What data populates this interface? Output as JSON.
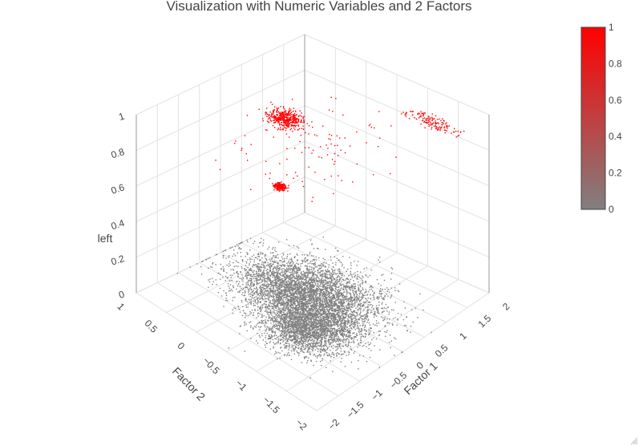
{
  "chart_data": {
    "type": "scatter",
    "title": "Visualization with Numeric Variables and 2 Factors",
    "axes": {
      "x": {
        "title": "Factor 1",
        "range": [
          -2,
          2
        ],
        "tick_labels": [
          "−2",
          "−1.5",
          "−1",
          "−0.5",
          "0",
          "0.5",
          "1",
          "1.5",
          "2"
        ]
      },
      "y": {
        "title": "Factor 2",
        "range": [
          -2,
          1
        ],
        "tick_labels": [
          "−2",
          "−1.5",
          "−1",
          "−0.5",
          "0",
          "0.5",
          "1"
        ]
      },
      "z": {
        "title": "left",
        "range": [
          0,
          1
        ],
        "tick_labels": [
          "0",
          "0.2",
          "0.4",
          "0.6",
          "0.8",
          "1"
        ]
      }
    },
    "colorbar": {
      "min": 0,
      "max": 1,
      "tick_values": [
        0,
        0.2,
        0.4,
        0.6,
        0.8,
        1
      ],
      "tick_labels": [
        "0",
        "0.2",
        "0.4",
        "0.6",
        "0.8",
        "1"
      ],
      "color_low": "#808080",
      "color_high": "#ff0000",
      "position": "right"
    },
    "series": [
      {
        "left": 0,
        "color": "#808080",
        "approx_points": 7000,
        "clusters": [
          {
            "factor1_center": 0.1,
            "factor2_center": -0.35,
            "factor1_spread": 0.45,
            "factor2_spread": 0.5
          },
          {
            "factor1_center": -0.55,
            "factor2_center": -0.85,
            "factor1_spread": 0.35,
            "factor2_spread": 0.3
          }
        ]
      },
      {
        "left": 1,
        "color": "#ff0000",
        "approx_points": 900,
        "clusters": [
          {
            "factor1_center": -0.2,
            "factor2_center": -0.2,
            "factor1_spread": 0.12,
            "factor2_spread": 0.12
          },
          {
            "factor1_center": -1.6,
            "factor2_center": -1.1,
            "factor1_spread": 0.04,
            "factor2_spread": 0.04
          },
          {
            "factor1_center": 1.3,
            "factor2_center": -1.55,
            "factor1_spread": 0.08,
            "factor2_spread": 0.2
          },
          {
            "factor1_center": -0.5,
            "factor2_center": -0.8,
            "factor1_spread": 0.6,
            "factor2_spread": 0.5
          }
        ]
      }
    ]
  }
}
